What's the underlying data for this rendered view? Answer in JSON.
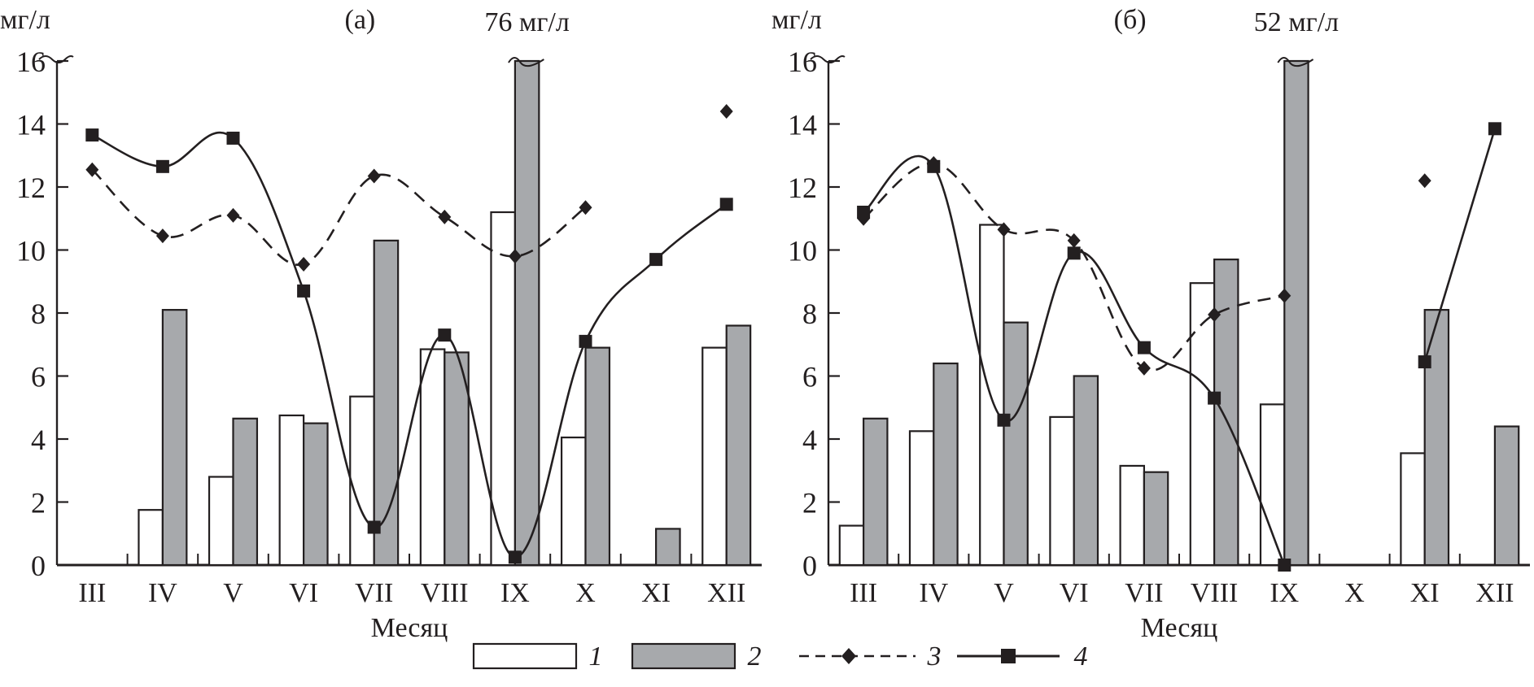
{
  "chart_data": [
    {
      "type": "bar",
      "panel_label": "(a)",
      "ylabel": "мг/л",
      "xlabel": "Месяц",
      "ylim": [
        0,
        16
      ],
      "yticks": [
        0,
        2,
        4,
        6,
        8,
        10,
        12,
        14,
        16
      ],
      "categories": [
        "III",
        "IV",
        "V",
        "VI",
        "VII",
        "VIII",
        "IX",
        "X",
        "XI",
        "XII"
      ],
      "break_annotation": "76 мг/л",
      "series": [
        {
          "name": "1",
          "kind": "bar",
          "fill": "#ffffff",
          "values": [
            null,
            1.75,
            2.8,
            4.75,
            5.35,
            6.85,
            11.2,
            4.05,
            null,
            6.9
          ]
        },
        {
          "name": "2",
          "kind": "bar",
          "fill": "#a7a9ac",
          "values": [
            null,
            8.1,
            4.65,
            4.5,
            10.3,
            6.75,
            76,
            6.9,
            1.15,
            7.6
          ]
        },
        {
          "name": "3",
          "kind": "line",
          "style": "dashed",
          "marker": "diamond",
          "values": [
            12.55,
            10.45,
            11.1,
            9.55,
            12.35,
            11.05,
            9.8,
            11.35,
            null,
            14.4
          ]
        },
        {
          "name": "4",
          "kind": "line",
          "style": "solid",
          "marker": "square",
          "values": [
            13.65,
            12.65,
            13.55,
            8.7,
            1.2,
            7.3,
            0.25,
            7.1,
            9.7,
            11.45
          ]
        }
      ]
    },
    {
      "type": "bar",
      "panel_label": "(б)",
      "ylabel": "мг/л",
      "xlabel": "Месяц",
      "ylim": [
        0,
        16
      ],
      "yticks": [
        0,
        2,
        4,
        6,
        8,
        10,
        12,
        14,
        16
      ],
      "categories": [
        "III",
        "IV",
        "V",
        "VI",
        "VII",
        "VIII",
        "IX",
        "X",
        "XI",
        "XII"
      ],
      "break_annotation": "52 мг/л",
      "series": [
        {
          "name": "1",
          "kind": "bar",
          "fill": "#ffffff",
          "values": [
            1.25,
            4.25,
            10.8,
            4.7,
            3.15,
            8.95,
            5.1,
            null,
            3.55,
            null
          ]
        },
        {
          "name": "2",
          "kind": "bar",
          "fill": "#a7a9ac",
          "values": [
            4.65,
            6.4,
            7.7,
            6.0,
            2.95,
            9.7,
            52,
            null,
            8.1,
            4.4
          ]
        },
        {
          "name": "3",
          "kind": "line",
          "style": "dashed",
          "marker": "diamond",
          "values": [
            11.0,
            12.75,
            10.65,
            10.3,
            6.25,
            7.95,
            8.55,
            null,
            12.2,
            null
          ]
        },
        {
          "name": "4",
          "kind": "line",
          "style": "solid",
          "marker": "square",
          "values": [
            11.2,
            12.65,
            4.6,
            9.9,
            6.9,
            5.3,
            0.0,
            null,
            6.45,
            13.85
          ]
        }
      ]
    }
  ],
  "legend": {
    "placement": "bottom-center",
    "items": [
      {
        "label": "1",
        "kind": "bar-white"
      },
      {
        "label": "2",
        "kind": "bar-gray"
      },
      {
        "label": "3",
        "kind": "dashed-diamond"
      },
      {
        "label": "4",
        "kind": "solid-square"
      }
    ]
  },
  "colors": {
    "ink": "#231f20",
    "gray_bar": "#a7a9ac",
    "white_bar": "#ffffff"
  }
}
